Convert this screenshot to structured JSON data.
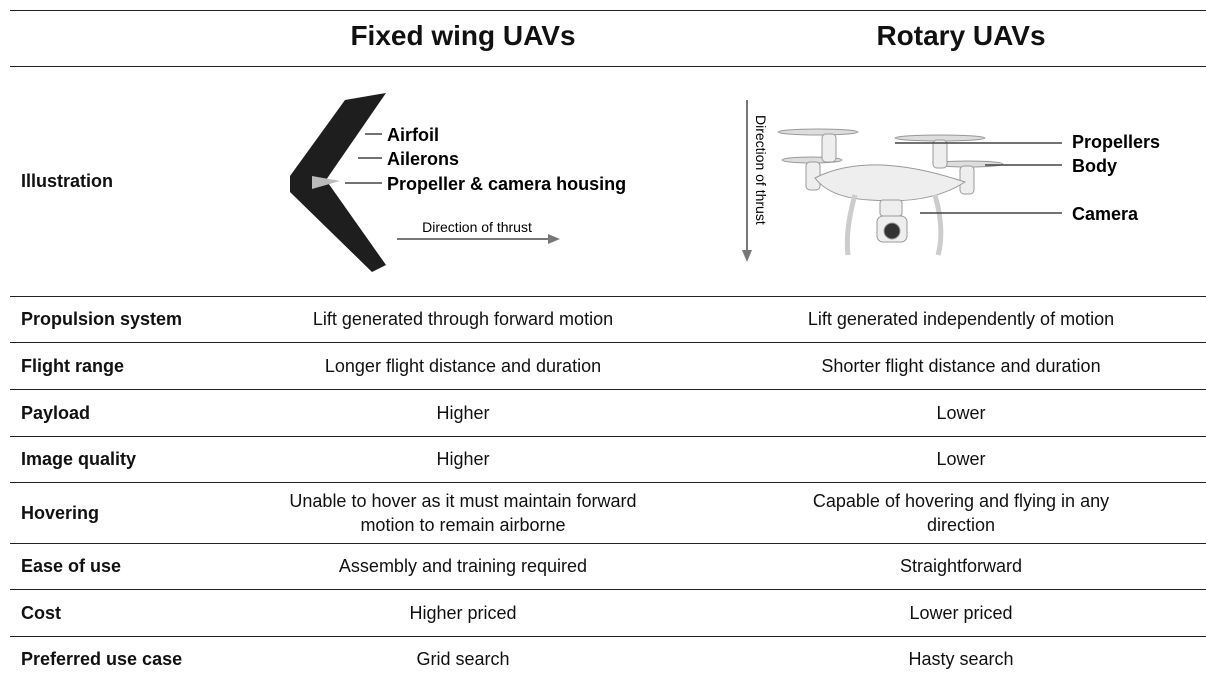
{
  "header": {
    "columns": [
      "Fixed wing UAVs",
      "Rotary UAVs"
    ]
  },
  "illustration": {
    "label": "Illustration",
    "fixed_wing": {
      "callouts": [
        "Airfoil",
        "Ailerons",
        "Propeller & camera housing"
      ],
      "arrow": "Direction of thrust"
    },
    "rotary": {
      "callouts": [
        "Propellers",
        "Body",
        "Camera"
      ],
      "arrow": "Direction of thrust"
    }
  },
  "table": {
    "rows": [
      [
        "Propulsion system",
        "Lift generated through forward motion",
        "Lift generated independently of motion"
      ],
      [
        "Flight range",
        "Longer flight distance and duration",
        "Shorter flight distance and duration"
      ],
      [
        "Payload",
        "Higher",
        "Lower"
      ],
      [
        "Image quality",
        "Higher",
        "Lower"
      ],
      [
        "Hovering",
        "Unable to hover as it must maintain forward motion to remain airborne",
        "Capable of hovering and flying in any direction"
      ],
      [
        "Ease of use",
        "Assembly and training required",
        "Straightforward"
      ],
      [
        "Cost",
        "Higher priced",
        "Lower priced"
      ],
      [
        "Preferred use case",
        "Grid search",
        "Hasty search"
      ]
    ]
  }
}
